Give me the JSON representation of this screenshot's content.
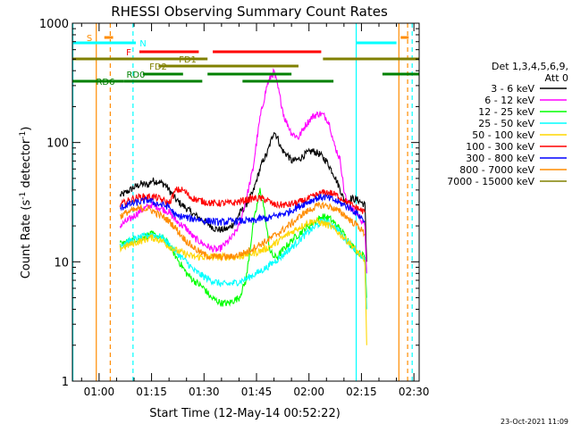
{
  "chart_data": {
    "type": "line",
    "title": "RHESSI Observing Summary Count Rates",
    "xlabel": "Start Time (12-May-14 00:52:22)",
    "ylabel_main": "Count Rate (s",
    "ylabel_sup1": "-1",
    "ylabel_mid": " detector",
    "ylabel_sup2": "-1",
    "ylabel_end": ")",
    "yscale": "log",
    "ylim": [
      1,
      1000
    ],
    "xlim": [
      52.37,
      151.5
    ],
    "x_unit": "minutes after 00:00 UT, 12-May-14",
    "xticks": [
      {
        "x": 60,
        "label": "01:00"
      },
      {
        "x": 75,
        "label": "01:15"
      },
      {
        "x": 90,
        "label": "01:30"
      },
      {
        "x": 105,
        "label": "01:45"
      },
      {
        "x": 120,
        "label": "02:00"
      },
      {
        "x": 135,
        "label": "02:15"
      },
      {
        "x": 150,
        "label": "02:30"
      }
    ],
    "yticks": [
      {
        "y": 1,
        "label": "1"
      },
      {
        "y": 10,
        "label": "10"
      },
      {
        "y": 100,
        "label": "100"
      },
      {
        "y": 1000,
        "label": "1000"
      }
    ],
    "legend_header": [
      "Det 1,3,4,5,6,9,",
      "Att 0"
    ],
    "legend_placement": "right",
    "series": [
      {
        "name": "3 - 6 keV",
        "color": "#000000",
        "x": [
          66,
          67,
          70,
          72,
          74,
          75,
          77,
          79,
          80,
          82,
          85,
          87,
          88,
          90,
          92,
          93,
          95,
          97,
          99,
          100,
          102,
          104,
          105,
          106,
          107,
          108,
          109,
          110,
          111,
          112,
          113,
          114,
          115,
          117,
          119,
          121,
          123,
          125,
          127,
          129,
          130,
          131,
          132,
          134,
          136,
          136.5
        ],
        "y": [
          36,
          37,
          42,
          45,
          44,
          48,
          47,
          44,
          40,
          33,
          28,
          25,
          24,
          22,
          20,
          19,
          18.5,
          19,
          22,
          25,
          30,
          38,
          48,
          60,
          72,
          80,
          100,
          125,
          110,
          90,
          82,
          78,
          70,
          72,
          80,
          85,
          80,
          70,
          55,
          40,
          33,
          32,
          34,
          33,
          30,
          10
        ]
      },
      {
        "name": "6 - 12 keV",
        "color": "#ff00ff",
        "x": [
          66,
          67,
          69,
          72,
          75,
          78,
          80,
          82,
          85,
          87,
          90,
          92,
          94,
          96,
          98,
          100,
          102,
          104,
          105,
          106,
          107,
          108,
          109,
          110,
          111,
          112,
          113,
          114,
          115,
          117,
          119,
          121,
          123,
          124,
          125,
          126,
          127,
          129,
          130,
          131,
          132,
          134,
          136,
          136.5
        ],
        "y": [
          20,
          21,
          23,
          27,
          30,
          28,
          26,
          22,
          19,
          16,
          14,
          13,
          12.5,
          14,
          16,
          20,
          33,
          60,
          100,
          160,
          220,
          300,
          350,
          390,
          300,
          220,
          160,
          140,
          120,
          110,
          140,
          165,
          175,
          170,
          160,
          140,
          100,
          70,
          40,
          30,
          28,
          25,
          20,
          8
        ]
      },
      {
        "name": "12 - 25 keV",
        "color": "#00ff00",
        "x": [
          66,
          69,
          72,
          75,
          78,
          80,
          82,
          85,
          87,
          90,
          92,
          95,
          97,
          100,
          102,
          104,
          105,
          106,
          107,
          108,
          109,
          110,
          111,
          112,
          113,
          114,
          116,
          118,
          120,
          122,
          124,
          126,
          128,
          130,
          132,
          134,
          136,
          136.5
        ],
        "y": [
          14,
          15,
          16,
          17,
          16,
          14,
          11,
          8,
          7,
          6,
          5,
          4.5,
          4.5,
          5,
          7,
          20,
          28,
          40,
          30,
          18,
          12,
          11,
          11,
          12,
          13,
          14,
          16,
          18,
          20,
          22,
          24,
          23,
          20,
          17,
          14,
          12,
          11,
          5
        ]
      },
      {
        "name": "25 - 50 keV",
        "color": "#00ffff",
        "x": [
          66,
          69,
          72,
          75,
          78,
          80,
          82,
          85,
          87,
          90,
          92,
          95,
          97,
          100,
          102,
          105,
          108,
          110,
          112,
          114,
          116,
          118,
          120,
          122,
          124,
          126,
          128,
          130,
          132,
          134,
          136,
          136.5
        ],
        "y": [
          14,
          15,
          16,
          17,
          16,
          14,
          12,
          10,
          8.5,
          7.5,
          7,
          6.5,
          6.5,
          6.8,
          7.2,
          8,
          9,
          10,
          11,
          12.5,
          14,
          16,
          18,
          20,
          22,
          21,
          19,
          16,
          14,
          12,
          10,
          4
        ]
      },
      {
        "name": "50 - 100 keV",
        "color": "#ffd700",
        "x": [
          66,
          69,
          72,
          75,
          78,
          80,
          82,
          85,
          87,
          90,
          92,
          95,
          97,
          100,
          102,
          105,
          108,
          110,
          112,
          114,
          116,
          118,
          120,
          122,
          124,
          126,
          128,
          130,
          132,
          134,
          136,
          136.5
        ],
        "y": [
          13,
          14,
          15,
          16,
          15,
          13.5,
          12.5,
          11.5,
          11,
          11,
          11,
          11,
          11,
          11,
          11.5,
          12,
          13,
          14,
          15.5,
          17,
          18.5,
          20,
          21.5,
          22,
          21,
          20,
          18,
          16,
          14,
          12,
          10,
          2
        ]
      },
      {
        "name": "100 - 300 keV",
        "color": "#ff0000",
        "x": [
          66,
          68,
          70,
          72,
          74,
          76,
          78,
          80,
          82,
          84,
          86,
          88,
          90,
          92,
          94,
          96,
          98,
          100,
          102,
          104,
          106,
          108,
          110,
          112,
          114,
          116,
          118,
          120,
          122,
          124,
          126,
          128,
          130,
          132,
          134,
          136
        ],
        "y": [
          30,
          32,
          34,
          35,
          35,
          35,
          33,
          31,
          40,
          40,
          35,
          33,
          32,
          31,
          31,
          31,
          31,
          32,
          33,
          34,
          34,
          33,
          30,
          30,
          30,
          31,
          32,
          34,
          36,
          38,
          38,
          36,
          33,
          30,
          28,
          26
        ]
      },
      {
        "name": "300 - 800 keV",
        "color": "#0000ff",
        "x": [
          66,
          68,
          70,
          72,
          74,
          76,
          78,
          80,
          82,
          84,
          86,
          88,
          90,
          92,
          94,
          96,
          98,
          100,
          102,
          104,
          106,
          108,
          110,
          112,
          114,
          116,
          118,
          120,
          122,
          124,
          126,
          128,
          130,
          132,
          134,
          136
        ],
        "y": [
          28,
          30,
          31,
          32,
          33,
          31,
          30,
          29,
          24,
          24,
          23,
          23,
          22,
          22,
          21.5,
          21.5,
          22,
          22,
          22,
          22,
          23,
          23,
          24,
          25,
          26,
          28,
          30,
          32,
          34,
          35,
          34,
          32,
          30,
          28,
          25,
          22
        ]
      },
      {
        "name": "800 - 7000 keV",
        "color": "#ff8c00",
        "x": [
          66,
          68,
          70,
          72,
          74,
          76,
          78,
          80,
          82,
          84,
          86,
          88,
          90,
          92,
          94,
          96,
          98,
          100,
          102,
          104,
          106,
          108,
          110,
          112,
          114,
          116,
          118,
          120,
          122,
          124,
          126,
          128,
          130,
          132,
          134,
          136
        ],
        "y": [
          24,
          26,
          27,
          28,
          28,
          26,
          24,
          22,
          19,
          16,
          14,
          12.5,
          11.5,
          11,
          11,
          11,
          11,
          11.5,
          12,
          13,
          14,
          15,
          16.5,
          18,
          20,
          22,
          25,
          27,
          29,
          30,
          29,
          27,
          25,
          22,
          20,
          17
        ]
      },
      {
        "name": "7000 - 15000 keV",
        "color": "#808000",
        "x": [],
        "y": []
      }
    ],
    "state_bars": [
      {
        "label": "S",
        "color": "#ff8c00",
        "segments": [
          [
            61.5,
            64
          ]
        ]
      },
      {
        "label": "N",
        "color": "#00ffff",
        "segments": [
          [
            52.4,
            70.5
          ],
          [
            133.5,
            145
          ]
        ]
      },
      {
        "label": "F",
        "color": "#ff0000",
        "segments": [
          [
            71.5,
            88.5
          ],
          [
            92.5,
            123.5
          ]
        ]
      },
      {
        "label": "FD1",
        "color": "#808000",
        "segments": [
          [
            52.4,
            91
          ],
          [
            124,
            151.5
          ]
        ]
      },
      {
        "label": "FD2",
        "color": "#808000",
        "segments": [
          [
            77,
            117
          ]
        ]
      },
      {
        "label": "RD0",
        "color": "#008000",
        "segments": [
          [
            72.5,
            84
          ],
          [
            91,
            115
          ],
          [
            141,
            151.5
          ]
        ]
      },
      {
        "label": "RD6",
        "color": "#008000",
        "segments": [
          [
            52.4,
            67
          ],
          [
            67,
            89.5
          ],
          [
            101,
            127
          ]
        ]
      }
    ],
    "right_bars": [
      {
        "color": "#ff8c00",
        "segments": [
          [
            146.2,
            148.5
          ]
        ]
      }
    ],
    "vertical_lines": [
      {
        "x": 52.5,
        "color": "#00ffff",
        "style": "solid"
      },
      {
        "x": 59.2,
        "color": "#ff8c00",
        "style": "solid"
      },
      {
        "x": 63.2,
        "color": "#ff8c00",
        "style": "dashed"
      },
      {
        "x": 69.7,
        "color": "#00ffff",
        "style": "dashed"
      },
      {
        "x": 133.5,
        "color": "#00ffff",
        "style": "solid"
      },
      {
        "x": 145.7,
        "color": "#ff8c00",
        "style": "solid"
      },
      {
        "x": 149.5,
        "color": "#00ffff",
        "style": "dashed"
      },
      {
        "x": 148.2,
        "color": "#ff8c00",
        "style": "dashed"
      }
    ],
    "timestamp": "23-Oct-2021 11:09"
  }
}
